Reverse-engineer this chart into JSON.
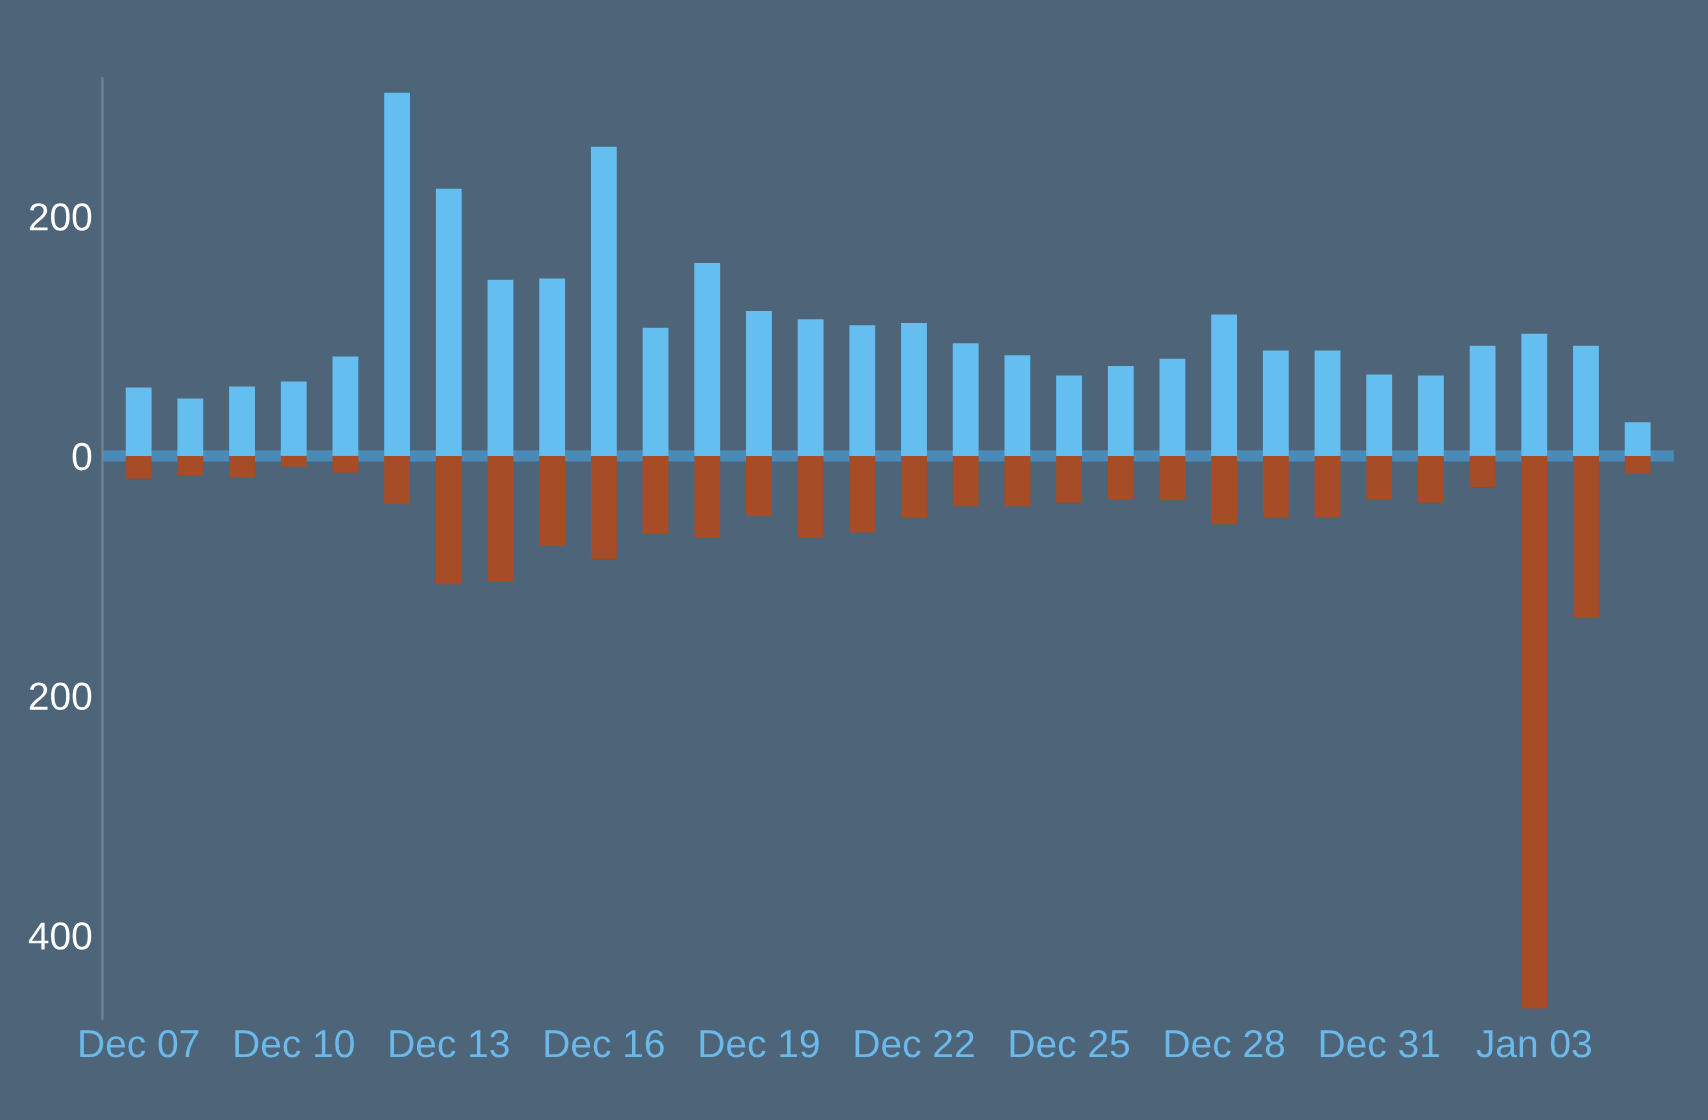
{
  "chart_data": {
    "type": "bar",
    "categories": [
      "Dec 07",
      null,
      null,
      "Dec 10",
      null,
      null,
      "Dec 13",
      null,
      null,
      "Dec 16",
      null,
      null,
      "Dec 19",
      null,
      null,
      "Dec 22",
      null,
      null,
      "Dec 25",
      null,
      null,
      "Dec 28",
      null,
      null,
      "Dec 31",
      null,
      null,
      "Jan 03",
      null,
      null
    ],
    "series": [
      {
        "color": "#64bef0",
        "values": [
          57,
          48,
          58,
          62,
          83,
          303,
          223,
          147,
          148,
          258,
          107,
          161,
          121,
          114,
          109,
          111,
          94,
          84,
          67,
          75,
          81,
          118,
          88,
          88,
          68,
          67,
          92,
          102,
          92,
          28
        ]
      },
      {
        "color": "#a64d27",
        "values": [
          -19,
          -16,
          -18,
          -9,
          -14,
          -40,
          -107,
          -105,
          -75,
          -86,
          -65,
          -68,
          -50,
          -68,
          -64,
          -51,
          -42,
          -42,
          -39,
          -36,
          -37,
          -57,
          -51,
          -51,
          -36,
          -39,
          -26,
          -461,
          -135,
          -15
        ]
      }
    ],
    "ylim": [
      -470,
      315
    ],
    "yticks": [
      {
        "value": -400,
        "label": "400"
      },
      {
        "value": -200,
        "label": "200"
      },
      0,
      200
    ],
    "ref_lines": [
      {
        "axis": "y",
        "value": 0,
        "color": "#4a8ab8"
      }
    ],
    "stacked": true,
    "grid": false,
    "legend": false
  }
}
